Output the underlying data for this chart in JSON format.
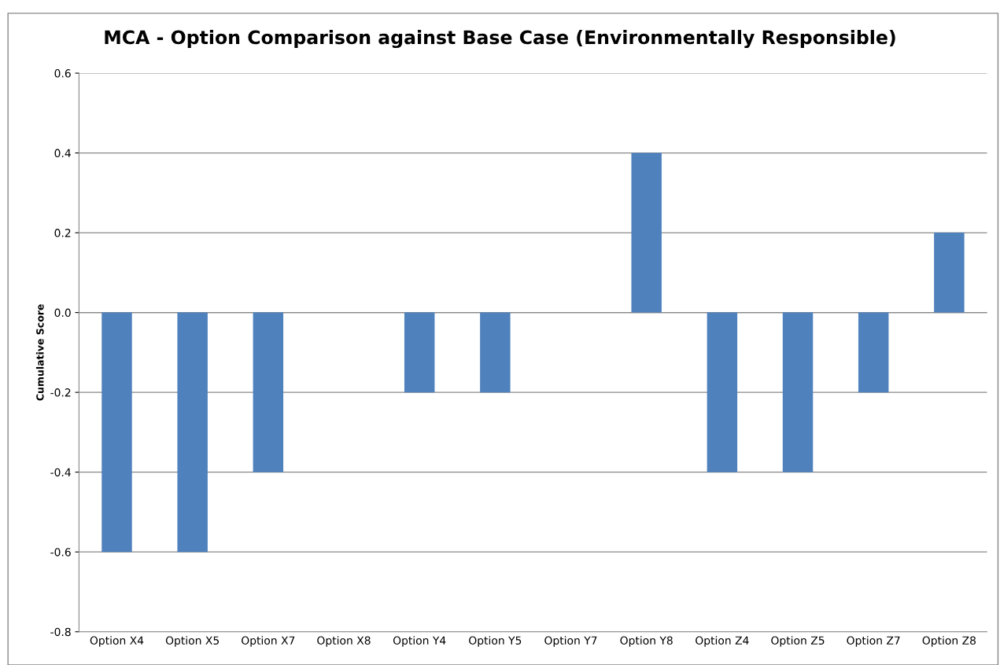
{
  "chart_data": {
    "type": "bar",
    "title": "MCA - Option Comparison against Base Case (Environmentally Responsible)",
    "ylabel": "Cumulative Score",
    "categories": [
      "Option X4",
      "Option X5",
      "Option X7",
      "Option X8",
      "Option Y4",
      "Option Y5",
      "Option Y7",
      "Option Y8",
      "Option Z4",
      "Option Z5",
      "Option Z7",
      "Option Z8"
    ],
    "values": [
      -0.6,
      -0.6,
      -0.4,
      0,
      -0.2,
      -0.2,
      0,
      0.4,
      -0.4,
      -0.4,
      -0.2,
      0.2
    ],
    "color": "#4f81bd",
    "ylim": [
      -0.8,
      0.6
    ],
    "yticks": [
      {
        "value": -0.8,
        "label": "-0.8"
      },
      {
        "value": -0.6,
        "label": "-0.6"
      },
      {
        "value": -0.4,
        "label": "-0.4"
      },
      {
        "value": -0.2,
        "label": "-0.2"
      },
      {
        "value": 0,
        "label": "0.0"
      },
      {
        "value": 0.2,
        "label": "0.2"
      },
      {
        "value": 0.4,
        "label": "0.4"
      },
      {
        "value": 0.6,
        "label": "0.6"
      }
    ],
    "grid": "y"
  }
}
